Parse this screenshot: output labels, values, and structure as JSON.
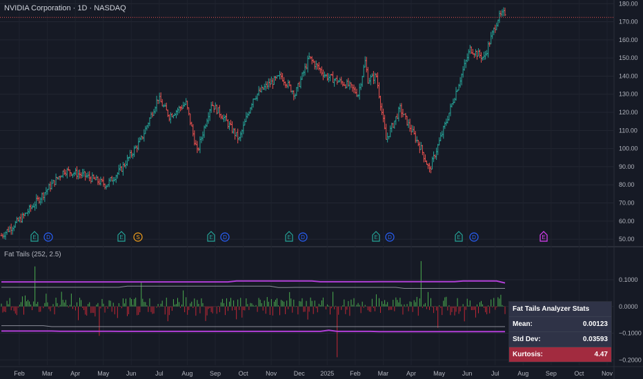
{
  "header": {
    "title": "NVIDIA Corporation · 1D · NASDAQ"
  },
  "indicator": {
    "label": "Fat Tails (252, 2.5)"
  },
  "stats": {
    "title": "Fat Tails Analyzer Stats",
    "rows": [
      {
        "label": "Mean:",
        "value": "0.00123"
      },
      {
        "label": "Std Dev:",
        "value": "0.03593"
      },
      {
        "label": "Kurtosis:",
        "value": "4.47"
      }
    ]
  },
  "colors": {
    "up": "#26a69a",
    "down": "#ef5350",
    "band": "#b23fd8",
    "band_inner": "#8c8f99",
    "bg": "#161a25",
    "stats_highlight": "#a22b3f"
  },
  "chart_data": [
    {
      "type": "ohlc",
      "title": "NVIDIA Corporation · 1D · NASDAQ",
      "yaxis": {
        "ticks": [
          "180.00",
          "170.00",
          "160.00",
          "150.00",
          "140.00",
          "130.00",
          "120.00",
          "110.00",
          "100.00",
          "90.00",
          "80.00",
          "70.00",
          "60.00",
          "50.00"
        ],
        "ylim": [
          47,
          182
        ]
      },
      "xaxis": {
        "ticks": [
          "Feb",
          "Mar",
          "Apr",
          "May",
          "Jun",
          "Jul",
          "Aug",
          "Sep",
          "Oct",
          "Nov",
          "Dec",
          "2025",
          "Feb",
          "Mar",
          "Apr",
          "May",
          "Jun",
          "Jul",
          "Aug",
          "Sep",
          "Oct",
          "Nov"
        ]
      },
      "last_price": 172.4,
      "price_path": [
        [
          0,
          52
        ],
        [
          15,
          62
        ],
        [
          30,
          75
        ],
        [
          45,
          88
        ],
        [
          60,
          85
        ],
        [
          75,
          80
        ],
        [
          85,
          88
        ],
        [
          100,
          105
        ],
        [
          112,
          128
        ],
        [
          120,
          118
        ],
        [
          132,
          125
        ],
        [
          140,
          98
        ],
        [
          150,
          125
        ],
        [
          158,
          118
        ],
        [
          170,
          105
        ],
        [
          180,
          128
        ],
        [
          190,
          135
        ],
        [
          200,
          140
        ],
        [
          210,
          130
        ],
        [
          220,
          150
        ],
        [
          232,
          140
        ],
        [
          248,
          135
        ],
        [
          255,
          130
        ],
        [
          260,
          148
        ],
        [
          262,
          138
        ],
        [
          268,
          140
        ],
        [
          275,
          105
        ],
        [
          285,
          122
        ],
        [
          300,
          100
        ],
        [
          306,
          88
        ],
        [
          318,
          115
        ],
        [
          335,
          155
        ],
        [
          345,
          150
        ],
        [
          355,
          172
        ],
        [
          360,
          175
        ]
      ],
      "events": [
        {
          "label": "E",
          "kind": "earnings"
        },
        {
          "label": "D",
          "kind": "dividend"
        },
        {
          "label": "E",
          "kind": "earnings"
        },
        {
          "label": "S",
          "kind": "split"
        },
        {
          "label": "E",
          "kind": "earnings"
        },
        {
          "label": "D",
          "kind": "dividend"
        },
        {
          "label": "E",
          "kind": "earnings"
        },
        {
          "label": "D",
          "kind": "dividend"
        },
        {
          "label": "E",
          "kind": "earnings"
        },
        {
          "label": "D",
          "kind": "dividend"
        },
        {
          "label": "E",
          "kind": "earnings"
        },
        {
          "label": "D",
          "kind": "dividend"
        },
        {
          "label": "E",
          "kind": "upcoming-earnings"
        }
      ]
    },
    {
      "type": "histogram",
      "title": "Fat Tails (252, 2.5)",
      "yaxis": {
        "ticks": [
          "0.1000",
          "0.0000",
          "−0.1000",
          "−0.2000"
        ],
        "ylim": [
          -0.22,
          0.18
        ]
      },
      "upper_band": 0.092,
      "lower_band": -0.092,
      "upper_inner": 0.072,
      "lower_inner": -0.072,
      "extremes": [
        [
          24,
          0.15
        ],
        [
          100,
          0.09
        ],
        [
          240,
          -0.19
        ],
        [
          300,
          0.17
        ],
        [
          312,
          -0.08
        ],
        [
          130,
          0.06
        ],
        [
          70,
          -0.11
        ]
      ]
    }
  ]
}
